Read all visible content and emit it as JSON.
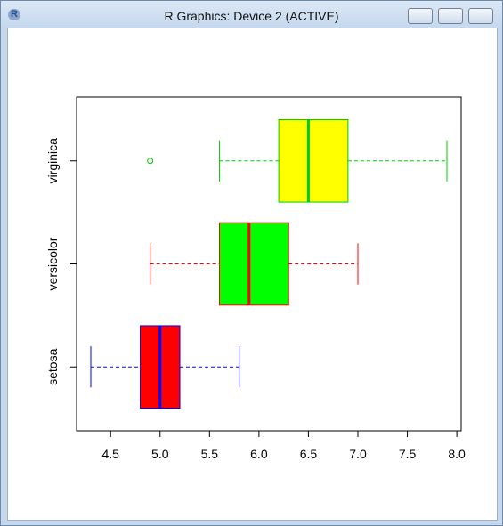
{
  "window": {
    "title": "R Graphics: Device 2 (ACTIVE)"
  },
  "chart_data": {
    "type": "boxplot",
    "orientation": "horizontal",
    "categories": [
      "setosa",
      "versicolor",
      "virginica"
    ],
    "stats": [
      [
        4.3,
        4.8,
        5.0,
        5.2,
        5.8
      ],
      [
        4.9,
        5.6,
        5.9,
        6.3,
        7.0
      ],
      [
        5.6,
        6.2,
        6.5,
        6.9,
        7.9
      ]
    ],
    "outliers": [
      [],
      [],
      [
        4.9
      ]
    ],
    "fill_colors": [
      "#ff0000",
      "#00ff00",
      "#ffff00"
    ],
    "border_colors": [
      "#0000ff",
      "#ff0000",
      "#00cc00"
    ],
    "xlim": [
      4.156,
      8.044
    ],
    "xticks": [
      4.5,
      {
        "value": 5,
        "label": "5.0"
      },
      5.5,
      {
        "value": 6,
        "label": "6.0"
      },
      6.5,
      {
        "value": 7,
        "label": "7.0"
      },
      7.5,
      {
        "value": 8,
        "label": "8.0"
      }
    ]
  }
}
